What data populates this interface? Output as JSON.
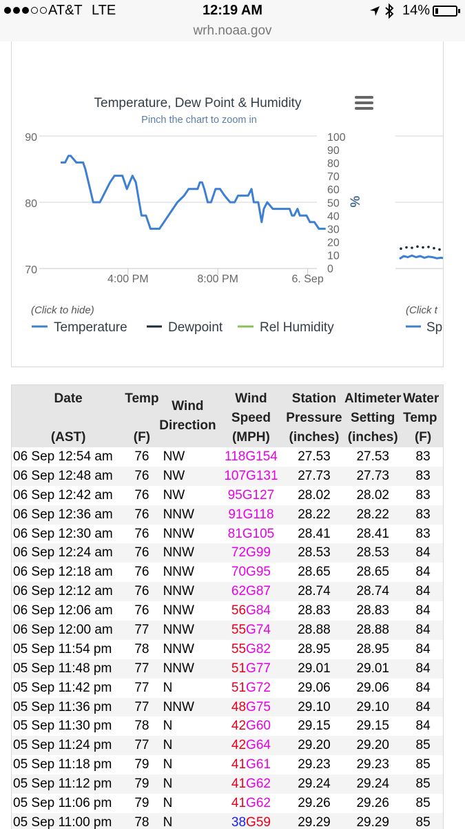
{
  "status_bar": {
    "carrier": "AT&T",
    "network": "LTE",
    "time": "12:19 AM",
    "battery": "14%",
    "url": "wrh.noaa.gov",
    "icons": [
      "signal-dots-icon",
      "location-arrow-icon",
      "bluetooth-icon",
      "battery-icon"
    ]
  },
  "chart_data": {
    "type": "line",
    "title": "Temperature, Dew Point & Humidity",
    "subtitle": "Pinch the chart to zoom in",
    "y_left_ticks": [
      "90",
      "80",
      "70"
    ],
    "y_left_range": [
      70,
      90
    ],
    "y_right_ticks": [
      "100",
      "90",
      "80",
      "70",
      "60",
      "50",
      "40",
      "30",
      "20",
      "10",
      "0"
    ],
    "y_right_label": "%",
    "x_ticks": [
      "4:00 PM",
      "8:00 PM",
      "6. Sep"
    ],
    "x_hours": [
      16,
      20,
      24
    ],
    "legend_hint": "(Click to hide)",
    "legend_hint_right": "(Click t",
    "legend_right_partial": "Sp",
    "series": [
      {
        "name": "Temperature",
        "color": "#3d7fd3",
        "x_hours": [
          13.0,
          13.2,
          13.35,
          13.45,
          13.7,
          13.9,
          14.0,
          14.1,
          14.45,
          14.6,
          14.75,
          14.9,
          15.2,
          15.4,
          15.5,
          15.75,
          15.95,
          16.2,
          16.35,
          16.6,
          16.8,
          17.0,
          17.1,
          17.2,
          17.4,
          17.6,
          17.8,
          18.0,
          18.2,
          18.5,
          18.7,
          18.9,
          19.1,
          19.2,
          19.3,
          19.4,
          19.55,
          19.7,
          19.9,
          20.1,
          20.3,
          20.55,
          20.75,
          20.9,
          21.1,
          21.35,
          21.5,
          21.6,
          21.8,
          21.95,
          22.05,
          22.2,
          22.45,
          22.75,
          23.0,
          23.2,
          23.3,
          23.4,
          23.55,
          23.65,
          23.75,
          23.95,
          24.1,
          24.3,
          24.5,
          24.8
        ],
        "values": [
          86,
          86,
          87,
          87,
          86,
          86,
          86,
          85,
          80,
          80,
          80,
          81,
          83,
          84,
          84,
          84,
          82,
          84,
          83,
          78,
          78,
          76,
          76,
          76,
          76,
          77,
          78,
          79,
          80,
          81,
          82,
          82,
          82,
          83,
          83,
          82,
          80,
          80,
          82,
          82,
          81,
          80,
          80,
          81,
          81,
          81,
          82,
          80,
          80,
          77,
          79,
          80,
          79,
          79,
          79,
          79,
          78,
          78,
          79,
          78,
          78,
          78,
          77,
          77,
          76,
          76
        ]
      },
      {
        "name": "Dewpoint",
        "color": "#1a2a3a"
      },
      {
        "name": "Rel Humidity",
        "color": "#88c057"
      }
    ],
    "right_chart_fragment": {
      "series_blue": [
        0.0,
        0.5,
        0.3,
        0.6,
        0.3,
        0.5,
        0.2,
        0.4,
        0.3,
        0.1,
        0.2,
        0.1,
        0.2
      ],
      "series_dots": [
        0.8,
        1.1,
        1.0,
        1.3,
        1.1,
        1.2,
        0.9,
        0.6
      ]
    }
  },
  "table": {
    "headers": [
      [
        "Date",
        "",
        "(AST)"
      ],
      [
        "Temp",
        "",
        "(F)"
      ],
      [
        "",
        "Wind Direction",
        ""
      ],
      [
        "Wind",
        "Speed",
        "(MPH)"
      ],
      [
        "Station",
        "Pressure",
        "(inches)"
      ],
      [
        "Altimeter",
        "Setting",
        "(inches)"
      ],
      [
        "Water",
        "Temp",
        "(F)"
      ]
    ],
    "rows": [
      {
        "date": "06 Sep 12:54 am",
        "temp": "76",
        "dir": "NW",
        "speed": "118",
        "gust": "G154",
        "speed_color": "#e800e8",
        "gust_color": "#e800e8",
        "station": "27.53",
        "altimeter": "27.53",
        "water": "83"
      },
      {
        "date": "06 Sep 12:48 am",
        "temp": "76",
        "dir": "NW",
        "speed": "107",
        "gust": "G131",
        "speed_color": "#e800e8",
        "gust_color": "#e800e8",
        "station": "27.73",
        "altimeter": "27.73",
        "water": "83"
      },
      {
        "date": "06 Sep 12:42 am",
        "temp": "76",
        "dir": "NW",
        "speed": "95",
        "gust": "G127",
        "speed_color": "#e800e8",
        "gust_color": "#e800e8",
        "station": "28.02",
        "altimeter": "28.02",
        "water": "83"
      },
      {
        "date": "06 Sep 12:36 am",
        "temp": "76",
        "dir": "NNW",
        "speed": "91",
        "gust": "G118",
        "speed_color": "#e800e8",
        "gust_color": "#e800e8",
        "station": "28.22",
        "altimeter": "28.22",
        "water": "83"
      },
      {
        "date": "06 Sep 12:30 am",
        "temp": "76",
        "dir": "NNW",
        "speed": "81",
        "gust": "G105",
        "speed_color": "#e800e8",
        "gust_color": "#e800e8",
        "station": "28.41",
        "altimeter": "28.41",
        "water": "83"
      },
      {
        "date": "06 Sep 12:24 am",
        "temp": "76",
        "dir": "NNW",
        "speed": "72",
        "gust": "G99",
        "speed_color": "#e800e8",
        "gust_color": "#e800e8",
        "station": "28.53",
        "altimeter": "28.53",
        "water": "84"
      },
      {
        "date": "06 Sep 12:18 am",
        "temp": "76",
        "dir": "NNW",
        "speed": "70",
        "gust": "G95",
        "speed_color": "#e800e8",
        "gust_color": "#e800e8",
        "station": "28.65",
        "altimeter": "28.65",
        "water": "84"
      },
      {
        "date": "06 Sep 12:12 am",
        "temp": "76",
        "dir": "NNW",
        "speed": "62",
        "gust": "G87",
        "speed_color": "#e800e8",
        "gust_color": "#e800e8",
        "station": "28.74",
        "altimeter": "28.74",
        "water": "84"
      },
      {
        "date": "06 Sep 12:06 am",
        "temp": "76",
        "dir": "NNW",
        "speed": "56",
        "gust": "G84",
        "speed_color": "#e8001c",
        "gust_color": "#e800e8",
        "station": "28.83",
        "altimeter": "28.83",
        "water": "84"
      },
      {
        "date": "06 Sep 12:00 am",
        "temp": "77",
        "dir": "NNW",
        "speed": "55",
        "gust": "G74",
        "speed_color": "#e8001c",
        "gust_color": "#e800e8",
        "station": "28.88",
        "altimeter": "28.88",
        "water": "84"
      },
      {
        "date": "05 Sep 11:54 pm",
        "temp": "78",
        "dir": "NNW",
        "speed": "55",
        "gust": "G82",
        "speed_color": "#e8001c",
        "gust_color": "#e800e8",
        "station": "28.95",
        "altimeter": "28.95",
        "water": "84"
      },
      {
        "date": "05 Sep 11:48 pm",
        "temp": "77",
        "dir": "NNW",
        "speed": "51",
        "gust": "G77",
        "speed_color": "#e8001c",
        "gust_color": "#e800e8",
        "station": "29.01",
        "altimeter": "29.01",
        "water": "84"
      },
      {
        "date": "05 Sep 11:42 pm",
        "temp": "77",
        "dir": "N",
        "speed": "51",
        "gust": "G72",
        "speed_color": "#e8001c",
        "gust_color": "#e800e8",
        "station": "29.06",
        "altimeter": "29.06",
        "water": "84"
      },
      {
        "date": "05 Sep 11:36 pm",
        "temp": "77",
        "dir": "NNW",
        "speed": "48",
        "gust": "G75",
        "speed_color": "#e8001c",
        "gust_color": "#e800e8",
        "station": "29.10",
        "altimeter": "29.10",
        "water": "84"
      },
      {
        "date": "05 Sep 11:30 pm",
        "temp": "78",
        "dir": "N",
        "speed": "42",
        "gust": "G60",
        "speed_color": "#e8001c",
        "gust_color": "#e800e8",
        "station": "29.15",
        "altimeter": "29.15",
        "water": "84"
      },
      {
        "date": "05 Sep 11:24 pm",
        "temp": "77",
        "dir": "N",
        "speed": "42",
        "gust": "G64",
        "speed_color": "#e8001c",
        "gust_color": "#e800e8",
        "station": "29.20",
        "altimeter": "29.20",
        "water": "85"
      },
      {
        "date": "05 Sep 11:18 pm",
        "temp": "79",
        "dir": "N",
        "speed": "41",
        "gust": "G61",
        "speed_color": "#e8001c",
        "gust_color": "#e800e8",
        "station": "29.23",
        "altimeter": "29.23",
        "water": "85"
      },
      {
        "date": "05 Sep 11:12 pm",
        "temp": "79",
        "dir": "N",
        "speed": "41",
        "gust": "G62",
        "speed_color": "#e8001c",
        "gust_color": "#e800e8",
        "station": "29.24",
        "altimeter": "29.24",
        "water": "85"
      },
      {
        "date": "05 Sep 11:06 pm",
        "temp": "79",
        "dir": "N",
        "speed": "41",
        "gust": "G62",
        "speed_color": "#e8001c",
        "gust_color": "#e800e8",
        "station": "29.26",
        "altimeter": "29.26",
        "water": "85"
      },
      {
        "date": "05 Sep 11:00 pm",
        "temp": "78",
        "dir": "N",
        "speed": "38",
        "gust": "G59",
        "speed_color": "#1a1aff",
        "gust_color": "#e8001c",
        "station": "29.29",
        "altimeter": "29.29",
        "water": "85"
      }
    ]
  }
}
